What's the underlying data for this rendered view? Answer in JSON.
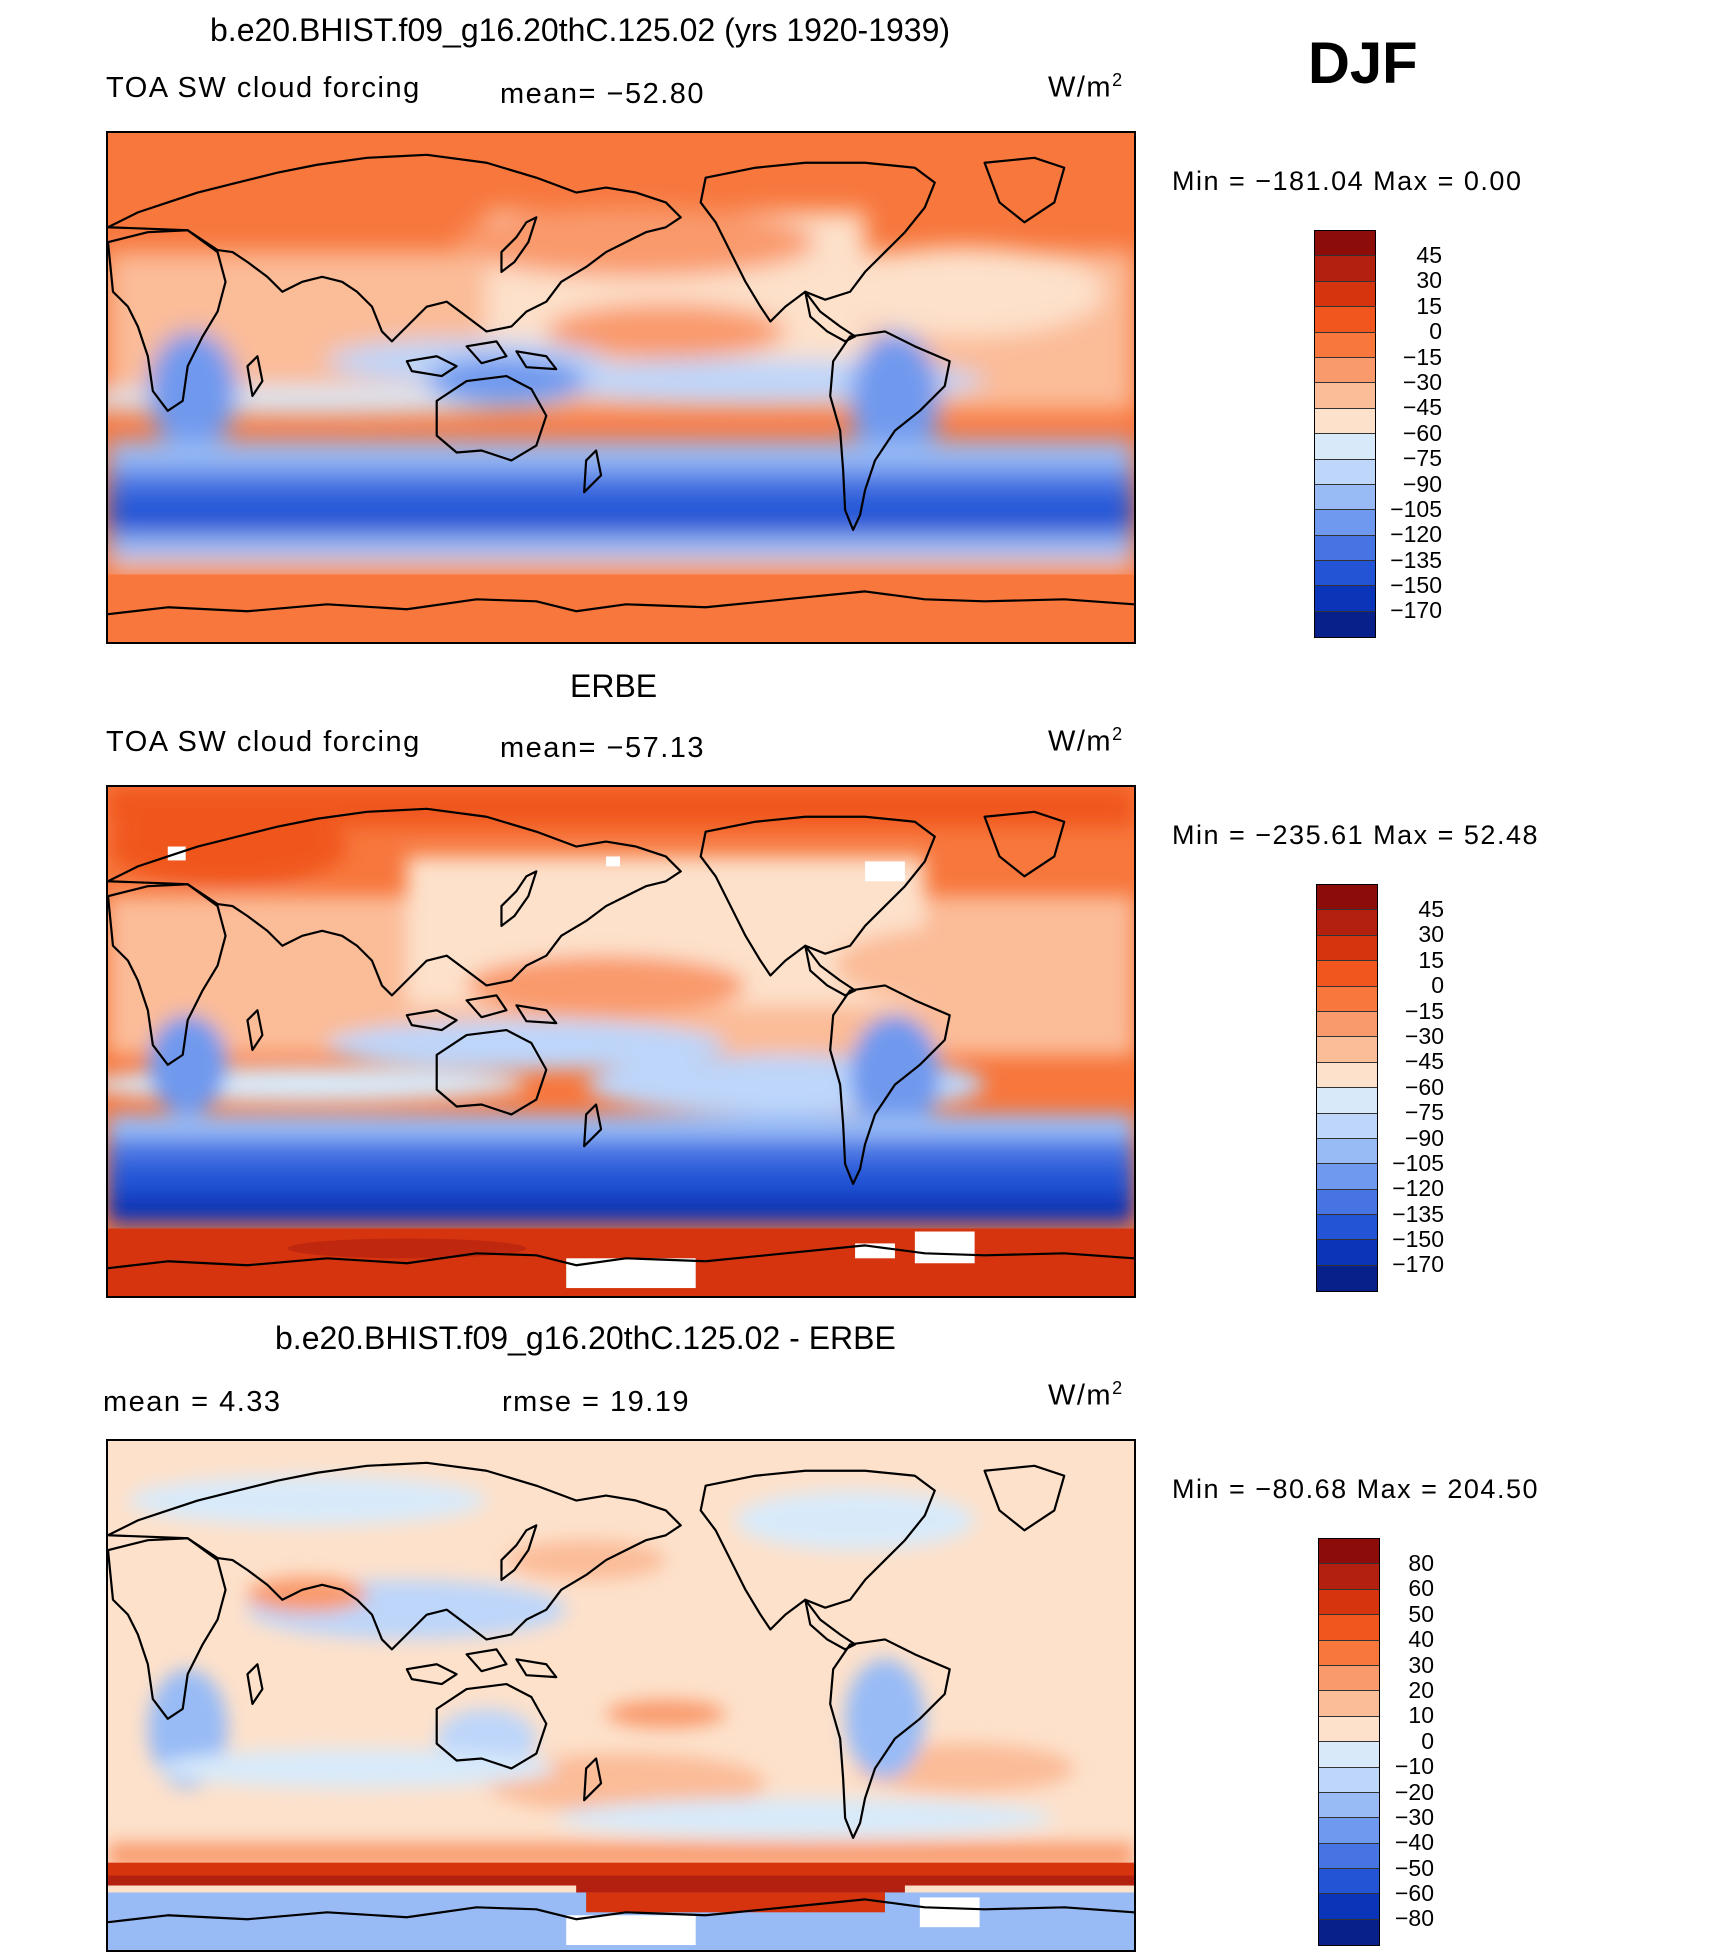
{
  "season": "DJF",
  "panels": [
    {
      "title": "b.e20.BHIST.f09_g16.20thC.125.02 (yrs 1920-1939)",
      "variable": "TOA SW cloud forcing",
      "stat1": "mean=  −52.80",
      "stat2": "",
      "unit": "W/m",
      "unit_exp": "2",
      "minmax": "Min  =  −181.04  Max  =      0.00",
      "colorbar": {
        "ticks": [
          "45",
          "30",
          "15",
          "0",
          "−15",
          "−30",
          "−45",
          "−60",
          "−75",
          "−90",
          "−105",
          "−120",
          "−135",
          "−150",
          "−170"
        ],
        "colors": [
          "#8b0c08",
          "#b3200f",
          "#d5340f",
          "#f0561d",
          "#f7773d",
          "#f99a6c",
          "#fbbc98",
          "#fde1cb",
          "#d8eafa",
          "#bdd6fa",
          "#98bbf6",
          "#6f99ee",
          "#4675e3",
          "#2354d6",
          "#0b35b8",
          "#08208a"
        ]
      }
    },
    {
      "title": "ERBE",
      "variable": "TOA SW cloud forcing",
      "stat1": "mean=  −57.13",
      "stat2": "",
      "unit": "W/m",
      "unit_exp": "2",
      "minmax": "Min  =  −235.61  Max  =    52.48",
      "colorbar": {
        "ticks": [
          "45",
          "30",
          "15",
          "0",
          "−15",
          "−30",
          "−45",
          "−60",
          "−75",
          "−90",
          "−105",
          "−120",
          "−135",
          "−150",
          "−170"
        ],
        "colors": [
          "#8b0c08",
          "#b3200f",
          "#d5340f",
          "#f0561d",
          "#f7773d",
          "#f99a6c",
          "#fbbc98",
          "#fde1cb",
          "#d8eafa",
          "#bdd6fa",
          "#98bbf6",
          "#6f99ee",
          "#4675e3",
          "#2354d6",
          "#0b35b8",
          "#08208a"
        ]
      }
    },
    {
      "title": "b.e20.BHIST.f09_g16.20thC.125.02 - ERBE",
      "variable": "",
      "stat1": "mean  =     4.33",
      "stat2": "rmse  =    19.19",
      "unit": "W/m",
      "unit_exp": "2",
      "minmax": "Min  =  −80.68  Max  =  204.50",
      "colorbar": {
        "ticks": [
          "80",
          "60",
          "50",
          "40",
          "30",
          "20",
          "10",
          "0",
          "−10",
          "−20",
          "−30",
          "−40",
          "−50",
          "−60",
          "−80"
        ],
        "colors": [
          "#8b0c08",
          "#b3200f",
          "#d5340f",
          "#f0561d",
          "#f7773d",
          "#f99a6c",
          "#fbbc98",
          "#fde1cb",
          "#d8eafa",
          "#bdd6fa",
          "#98bbf6",
          "#6f99ee",
          "#4675e3",
          "#2354d6",
          "#0b35b8",
          "#08208a"
        ]
      }
    }
  ]
}
